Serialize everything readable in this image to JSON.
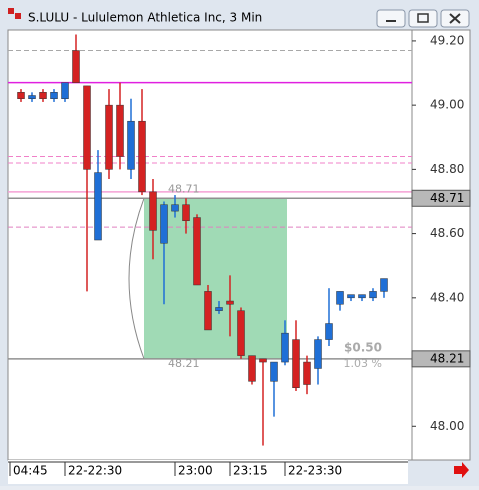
{
  "window": {
    "title": "S.LULU - Lululemon Athletica Inc, 3 Min"
  },
  "chart_data": {
    "type": "candlestick",
    "categories": [
      "04:45",
      null,
      null,
      null,
      null,
      "22-22:30",
      null,
      null,
      null,
      null,
      null,
      null,
      null,
      null,
      null,
      "23:00",
      null,
      null,
      null,
      null,
      "23:15",
      null,
      null,
      null,
      null,
      "22-23:30",
      null,
      null,
      null,
      null,
      null,
      null,
      null,
      null
    ],
    "open": [
      49.04,
      49.02,
      49.04,
      49.02,
      49.02,
      49.17,
      49.06,
      48.58,
      49.0,
      49.0,
      48.8,
      48.95,
      48.73,
      48.57,
      48.67,
      48.69,
      48.65,
      48.42,
      48.36,
      48.39,
      48.36,
      48.22,
      48.21,
      48.14,
      48.2,
      48.27,
      48.2,
      48.18,
      48.27,
      48.38,
      48.4,
      48.4,
      48.4,
      48.42
    ],
    "high": [
      49.05,
      49.04,
      49.05,
      49.05,
      49.07,
      49.22,
      49.06,
      48.86,
      49.05,
      49.07,
      49.02,
      49.05,
      48.77,
      48.7,
      48.72,
      48.71,
      48.66,
      48.44,
      48.39,
      48.47,
      48.37,
      48.22,
      48.21,
      48.2,
      48.33,
      48.33,
      48.22,
      48.28,
      48.43,
      48.42,
      48.41,
      48.41,
      48.43,
      48.46
    ],
    "low": [
      49.01,
      49.01,
      49.01,
      49.01,
      49.01,
      49.07,
      48.42,
      48.58,
      48.77,
      48.8,
      48.77,
      48.72,
      48.52,
      48.38,
      48.65,
      48.6,
      48.44,
      48.3,
      48.35,
      48.28,
      48.21,
      48.13,
      47.94,
      48.03,
      48.19,
      48.11,
      48.1,
      48.13,
      48.25,
      48.36,
      48.39,
      48.39,
      48.39,
      48.4
    ],
    "close": [
      49.02,
      49.03,
      49.02,
      49.04,
      49.07,
      49.07,
      48.8,
      48.79,
      48.8,
      48.84,
      48.95,
      48.73,
      48.61,
      48.69,
      48.69,
      48.64,
      48.44,
      48.3,
      48.37,
      48.38,
      48.22,
      48.14,
      48.2,
      48.2,
      48.29,
      48.12,
      48.13,
      48.27,
      48.32,
      48.42,
      48.41,
      48.41,
      48.42,
      48.46
    ],
    "up_color": "#1f6fd6",
    "down_color": "#d42222",
    "ylim": [
      47.895,
      49.234
    ],
    "yticks": [
      {
        "value": 49.2,
        "label": "49.20"
      },
      {
        "value": 49.0,
        "label": "49.00"
      },
      {
        "value": 48.8,
        "label": "48.80"
      },
      {
        "value": 48.6,
        "label": "48.60"
      },
      {
        "value": 48.4,
        "label": "48.40"
      },
      {
        "value": 48.0,
        "label": "48.00"
      }
    ],
    "levels": [
      {
        "value": 49.17,
        "color": "#a8a8a8",
        "style": "dash"
      },
      {
        "value": 49.07,
        "color": "#e020e0",
        "style": "solid"
      },
      {
        "value": 48.84,
        "color": "#f080c8",
        "style": "dash"
      },
      {
        "value": 48.82,
        "color": "#f080c8",
        "style": "dash"
      },
      {
        "value": 48.73,
        "color": "#f4a0d4",
        "style": "solid"
      },
      {
        "value": 48.71,
        "color": "#909090",
        "style": "solid"
      },
      {
        "value": 48.62,
        "color": "#e080c0",
        "style": "dash"
      },
      {
        "value": 48.21,
        "color": "#909090",
        "style": "solid"
      }
    ],
    "price_markers": [
      {
        "value": 48.71,
        "label": "48.71"
      },
      {
        "value": 48.21,
        "label": "48.21"
      }
    ],
    "measure": {
      "top": {
        "value": 48.71,
        "label": "48.71"
      },
      "bottom": {
        "value": 48.21,
        "label": "48.21"
      },
      "change_label": "$0.50",
      "percent_label": "1.03 %",
      "color": "#8fd4a8"
    }
  }
}
